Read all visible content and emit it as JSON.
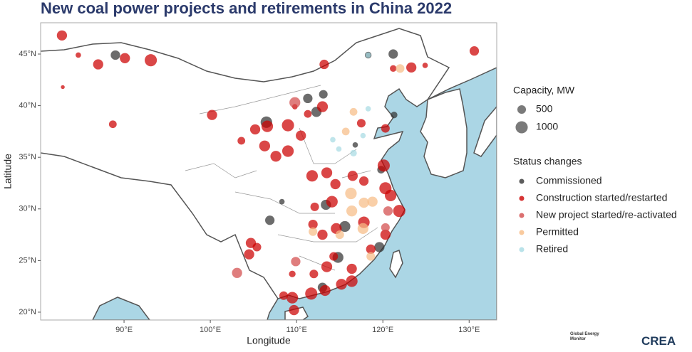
{
  "chart_data": {
    "type": "bubble-map",
    "title": "New coal power projects and retirements in China 2022",
    "x_label": "Longitude",
    "y_label": "Latitude",
    "xlim": [
      80.33,
      133.2
    ],
    "ylim": [
      19.24,
      48.03
    ],
    "xticks": [
      {
        "value": 90,
        "label": "90°E"
      },
      {
        "value": 100,
        "label": "100°E"
      },
      {
        "value": 110,
        "label": "110°E"
      },
      {
        "value": 120,
        "label": "120°E"
      },
      {
        "value": 130,
        "label": "130°E"
      }
    ],
    "yticks": [
      {
        "value": 20,
        "label": "20°N"
      },
      {
        "value": 25,
        "label": "25°N"
      },
      {
        "value": 30,
        "label": "30°N"
      },
      {
        "value": 35,
        "label": "35°N"
      },
      {
        "value": 40,
        "label": "40°N"
      },
      {
        "value": 45,
        "label": "45°N"
      }
    ],
    "size_legend": {
      "title": "Capacity, MW",
      "values": [
        500,
        1000
      ]
    },
    "legend_title": "Status changes",
    "series": [
      {
        "name": "Commissioned",
        "color": "#333333",
        "x": [
          89.0,
          121.2,
          106.5,
          111.3,
          113.1,
          112.3,
          106.9,
          113.4,
          115.6,
          114.8,
          119.6,
          119.8,
          108.3,
          113.0,
          121.3,
          116.8,
          118.3
        ],
        "y": [
          44.9,
          45.0,
          38.4,
          40.7,
          41.1,
          39.4,
          28.9,
          30.4,
          28.3,
          25.3,
          26.3,
          33.8,
          30.7,
          22.4,
          39.1,
          36.2,
          44.9
        ],
        "size": [
          600,
          600,
          900,
          600,
          500,
          700,
          600,
          700,
          800,
          800,
          700,
          400,
          200,
          600,
          300,
          200,
          300
        ]
      },
      {
        "name": "Construction started/restarted",
        "color": "#cc0000",
        "x": [
          82.8,
          84.7,
          87.0,
          90.1,
          93.1,
          82.9,
          88.7,
          100.2,
          113.2,
          121.2,
          123.3,
          124.9,
          130.6,
          103.6,
          105.2,
          106.6,
          109.0,
          109.8,
          106.3,
          109.0,
          107.6,
          111.8,
          113.5,
          114.5,
          116.5,
          117.8,
          120.1,
          120.3,
          120.9,
          121.9,
          114.1,
          112.1,
          111.9,
          113.0,
          114.6,
          117.8,
          120.3,
          118.6,
          104.7,
          104.5,
          105.4,
          113.5,
          116.4,
          114.3,
          116.4,
          115.2,
          113.3,
          111.7,
          109.5,
          109.7,
          108.5,
          112.0,
          109.5,
          111.3,
          113.0,
          110.5,
          117.5,
          120.3
        ],
        "y": [
          46.8,
          44.9,
          44.0,
          44.6,
          44.4,
          41.8,
          38.2,
          39.1,
          44.0,
          43.6,
          43.7,
          43.9,
          45.3,
          36.6,
          37.7,
          38.0,
          38.1,
          39.9,
          36.1,
          35.6,
          35.1,
          33.2,
          33.5,
          32.4,
          33.2,
          32.7,
          34.2,
          32.0,
          31.3,
          29.8,
          30.7,
          30.2,
          28.5,
          27.5,
          28.1,
          28.7,
          27.5,
          26.1,
          26.7,
          25.6,
          26.3,
          24.4,
          24.2,
          25.4,
          23.0,
          22.7,
          22.1,
          21.8,
          21.4,
          20.2,
          21.6,
          23.7,
          23.7,
          39.2,
          39.9,
          37.1,
          38.3,
          37.8
        ],
        "size": [
          700,
          200,
          700,
          700,
          1000,
          100,
          400,
          700,
          600,
          300,
          700,
          200,
          600,
          400,
          700,
          900,
          1000,
          200,
          800,
          900,
          800,
          900,
          800,
          700,
          700,
          600,
          1000,
          1000,
          900,
          1000,
          900,
          500,
          600,
          700,
          800,
          900,
          700,
          600,
          700,
          700,
          500,
          800,
          700,
          500,
          900,
          800,
          800,
          1000,
          900,
          700,
          500,
          500,
          300,
          400,
          800,
          700,
          500,
          500
        ]
      },
      {
        "name": "New project started/re-activated",
        "color": "#d24b4b",
        "x": [
          103.1,
          109.8,
          120.3,
          120.6,
          109.9
        ],
        "y": [
          23.8,
          40.3,
          28.2,
          29.8,
          24.9
        ],
        "size": [
          700,
          800,
          500,
          600,
          600
        ]
      },
      {
        "name": "Permitted",
        "color": "#f7bd86",
        "x": [
          122.0,
          116.6,
          116.3,
          117.8,
          118.8,
          116.4,
          117.7,
          115.0,
          118.6,
          115.7,
          111.9
        ],
        "y": [
          43.6,
          39.4,
          31.5,
          30.6,
          30.7,
          29.8,
          28.1,
          27.5,
          25.4,
          37.5,
          27.8
        ],
        "size": [
          500,
          400,
          900,
          700,
          700,
          800,
          800,
          500,
          500,
          400,
          500
        ]
      },
      {
        "name": "Retired",
        "color": "#a8dbe3",
        "x": [
          118.3,
          114.2,
          116.6,
          118.3,
          117.7,
          114.9
        ],
        "y": [
          44.9,
          36.7,
          35.4,
          39.7,
          37.1,
          35.8
        ],
        "size": [
          200,
          200,
          300,
          200,
          200,
          200
        ]
      }
    ],
    "sources": [
      "Global Energy Monitor",
      "CREA"
    ]
  }
}
